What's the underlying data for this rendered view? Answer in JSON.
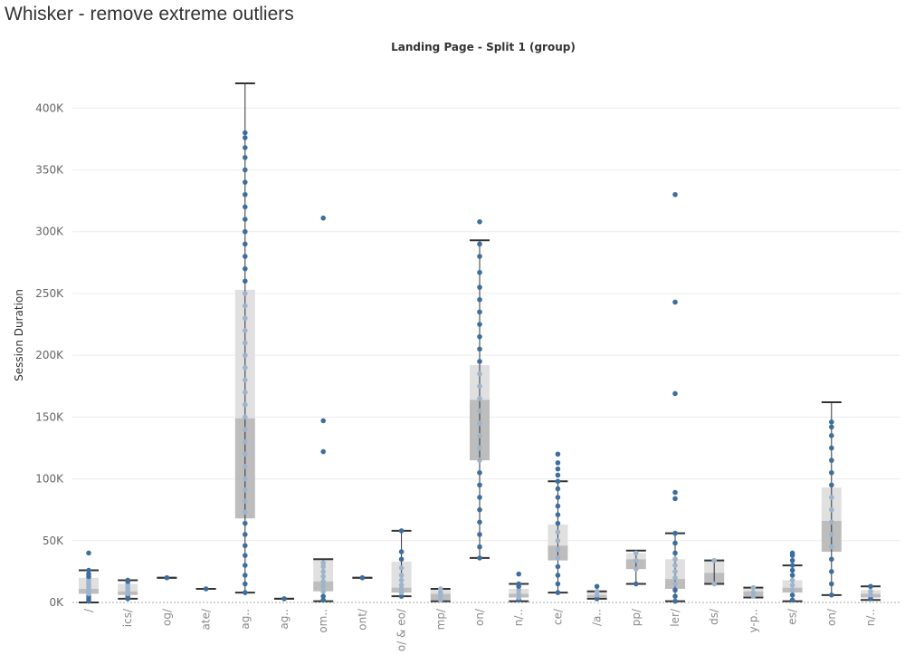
{
  "page_title": "Whisker - remove extreme outliers",
  "chart_data": {
    "type": "box",
    "header": "Landing Page - Split 1 (group)",
    "ylabel": "Session Duration",
    "ylim": [
      0,
      430000
    ],
    "yticks": [
      0,
      50000,
      100000,
      150000,
      200000,
      250000,
      300000,
      350000,
      400000
    ],
    "ytick_labels": [
      "0K",
      "50K",
      "100K",
      "150K",
      "200K",
      "250K",
      "300K",
      "350K",
      "400K"
    ],
    "grid": true,
    "colors": {
      "point": "#3d6e9e",
      "point_in_box": "#9db4cc",
      "box_upper": "#e0e0e0",
      "box_lower": "#bdbdbd",
      "whisker": "#333333",
      "grid": "#ececec",
      "zero_line": "#aaaaaa"
    },
    "categories": [
      {
        "label": "/",
        "lw": 0,
        "q1": 7000,
        "med": 11000,
        "q3": 20000,
        "uw": 26000,
        "points": [
          1000,
          3000,
          5000,
          7000,
          9000,
          11000,
          13000,
          15000,
          17000,
          19000,
          21000,
          23000,
          26000,
          40000
        ]
      },
      {
        "label": "ics/",
        "lw": 3000,
        "q1": 6000,
        "med": 9000,
        "q3": 15000,
        "uw": 18000,
        "points": [
          3000,
          5000,
          7000,
          9000,
          11000,
          13000,
          15000,
          17000,
          18000
        ]
      },
      {
        "label": "og/",
        "lw": 20000,
        "q1": 20000,
        "med": 20000,
        "q3": 20000,
        "uw": 20000,
        "points": [
          20000
        ]
      },
      {
        "label": "ate/",
        "lw": 11000,
        "q1": 11000,
        "med": 11000,
        "q3": 11000,
        "uw": 11000,
        "points": [
          11000
        ]
      },
      {
        "label": "ag..",
        "lw": 8000,
        "q1": 68000,
        "med": 149000,
        "q3": 253000,
        "uw": 420000,
        "points": [
          8000,
          15000,
          22000,
          30000,
          38000,
          46000,
          55000,
          64000,
          73000,
          82000,
          91000,
          100000,
          110000,
          120000,
          130000,
          140000,
          150000,
          160000,
          170000,
          180000,
          190000,
          200000,
          210000,
          220000,
          230000,
          240000,
          250000,
          260000,
          270000,
          280000,
          290000,
          300000,
          310000,
          320000,
          330000,
          340000,
          350000,
          360000,
          368000,
          376000,
          380000
        ]
      },
      {
        "label": "ag..",
        "lw": 3000,
        "q1": 3000,
        "med": 3000,
        "q3": 3000,
        "uw": 3000,
        "points": [
          3000
        ]
      },
      {
        "label": "om..",
        "lw": 1000,
        "q1": 9000,
        "med": 17000,
        "q3": 35000,
        "uw": 35000,
        "points": [
          2000,
          5000,
          9000,
          13000,
          17000,
          21000,
          25000,
          29000,
          32000,
          122000,
          147000,
          311000
        ]
      },
      {
        "label": "ont/",
        "lw": 20000,
        "q1": 20000,
        "med": 20000,
        "q3": 20000,
        "uw": 20000,
        "points": [
          20000
        ]
      },
      {
        "label": "o/ & eo/",
        "lw": 5000,
        "q1": 8000,
        "med": 12000,
        "q3": 33000,
        "uw": 58000,
        "points": [
          5000,
          8000,
          11000,
          14000,
          18000,
          22000,
          28000,
          35000,
          41000,
          58000
        ]
      },
      {
        "label": "mp/",
        "lw": 1000,
        "q1": 2000,
        "med": 7000,
        "q3": 11000,
        "uw": 11000,
        "points": [
          2000,
          5000,
          8000,
          11000
        ]
      },
      {
        "label": "on/",
        "lw": 36000,
        "q1": 115000,
        "med": 164000,
        "q3": 192000,
        "uw": 293000,
        "points": [
          36000,
          45000,
          55000,
          65000,
          75000,
          85000,
          95000,
          105000,
          115000,
          125000,
          135000,
          145000,
          155000,
          165000,
          175000,
          185000,
          195000,
          205000,
          215000,
          225000,
          235000,
          245000,
          255000,
          267000,
          280000,
          290000,
          308000
        ]
      },
      {
        "label": "n/..",
        "lw": 1000,
        "q1": 4000,
        "med": 7000,
        "q3": 11000,
        "uw": 15000,
        "points": [
          2000,
          4000,
          7000,
          10000,
          13000,
          15000,
          23000
        ]
      },
      {
        "label": "ce/",
        "lw": 8000,
        "q1": 34000,
        "med": 46000,
        "q3": 63000,
        "uw": 98000,
        "points": [
          8000,
          15000,
          22000,
          29000,
          36000,
          43000,
          50000,
          57000,
          64000,
          71000,
          78000,
          85000,
          92000,
          98000,
          103000,
          108000,
          113000,
          120000
        ]
      },
      {
        "label": "/a..",
        "lw": 3000,
        "q1": 4000,
        "med": 6000,
        "q3": 9000,
        "uw": 9000,
        "points": [
          3000,
          6000,
          9000,
          13000
        ]
      },
      {
        "label": "pp/",
        "lw": 15000,
        "q1": 27000,
        "med": 35000,
        "q3": 40000,
        "uw": 42000,
        "points": [
          15000,
          27000,
          34000,
          40000
        ]
      },
      {
        "label": "ler/",
        "lw": 1000,
        "q1": 11000,
        "med": 19000,
        "q3": 35000,
        "uw": 56000,
        "points": [
          1000,
          5000,
          10000,
          15000,
          20000,
          25000,
          30000,
          35000,
          40000,
          48000,
          56000,
          84000,
          89000,
          169000,
          243000,
          330000
        ]
      },
      {
        "label": "ds/",
        "lw": 15000,
        "q1": 15000,
        "med": 24000,
        "q3": 34000,
        "uw": 34000,
        "points": [
          15000,
          34000
        ]
      },
      {
        "label": "y-p..",
        "lw": 4000,
        "q1": 5000,
        "med": 9000,
        "q3": 12000,
        "uw": 12000,
        "points": [
          5000,
          8000,
          12000
        ]
      },
      {
        "label": "es/",
        "lw": 1000,
        "q1": 8000,
        "med": 12000,
        "q3": 18000,
        "uw": 30000,
        "points": [
          2000,
          6000,
          10000,
          14000,
          18000,
          22000,
          26000,
          30000,
          34000,
          38000,
          40000
        ]
      },
      {
        "label": "on/",
        "lw": 6000,
        "q1": 41000,
        "med": 66000,
        "q3": 93000,
        "uw": 162000,
        "points": [
          6000,
          15000,
          25000,
          35000,
          45000,
          55000,
          65000,
          75000,
          85000,
          95000,
          105000,
          115000,
          125000,
          135000,
          142000,
          146000
        ]
      },
      {
        "label": "n/..",
        "lw": 2000,
        "q1": 4000,
        "med": 7000,
        "q3": 10000,
        "uw": 13000,
        "points": [
          3000,
          6000,
          9000,
          13000
        ]
      }
    ]
  }
}
